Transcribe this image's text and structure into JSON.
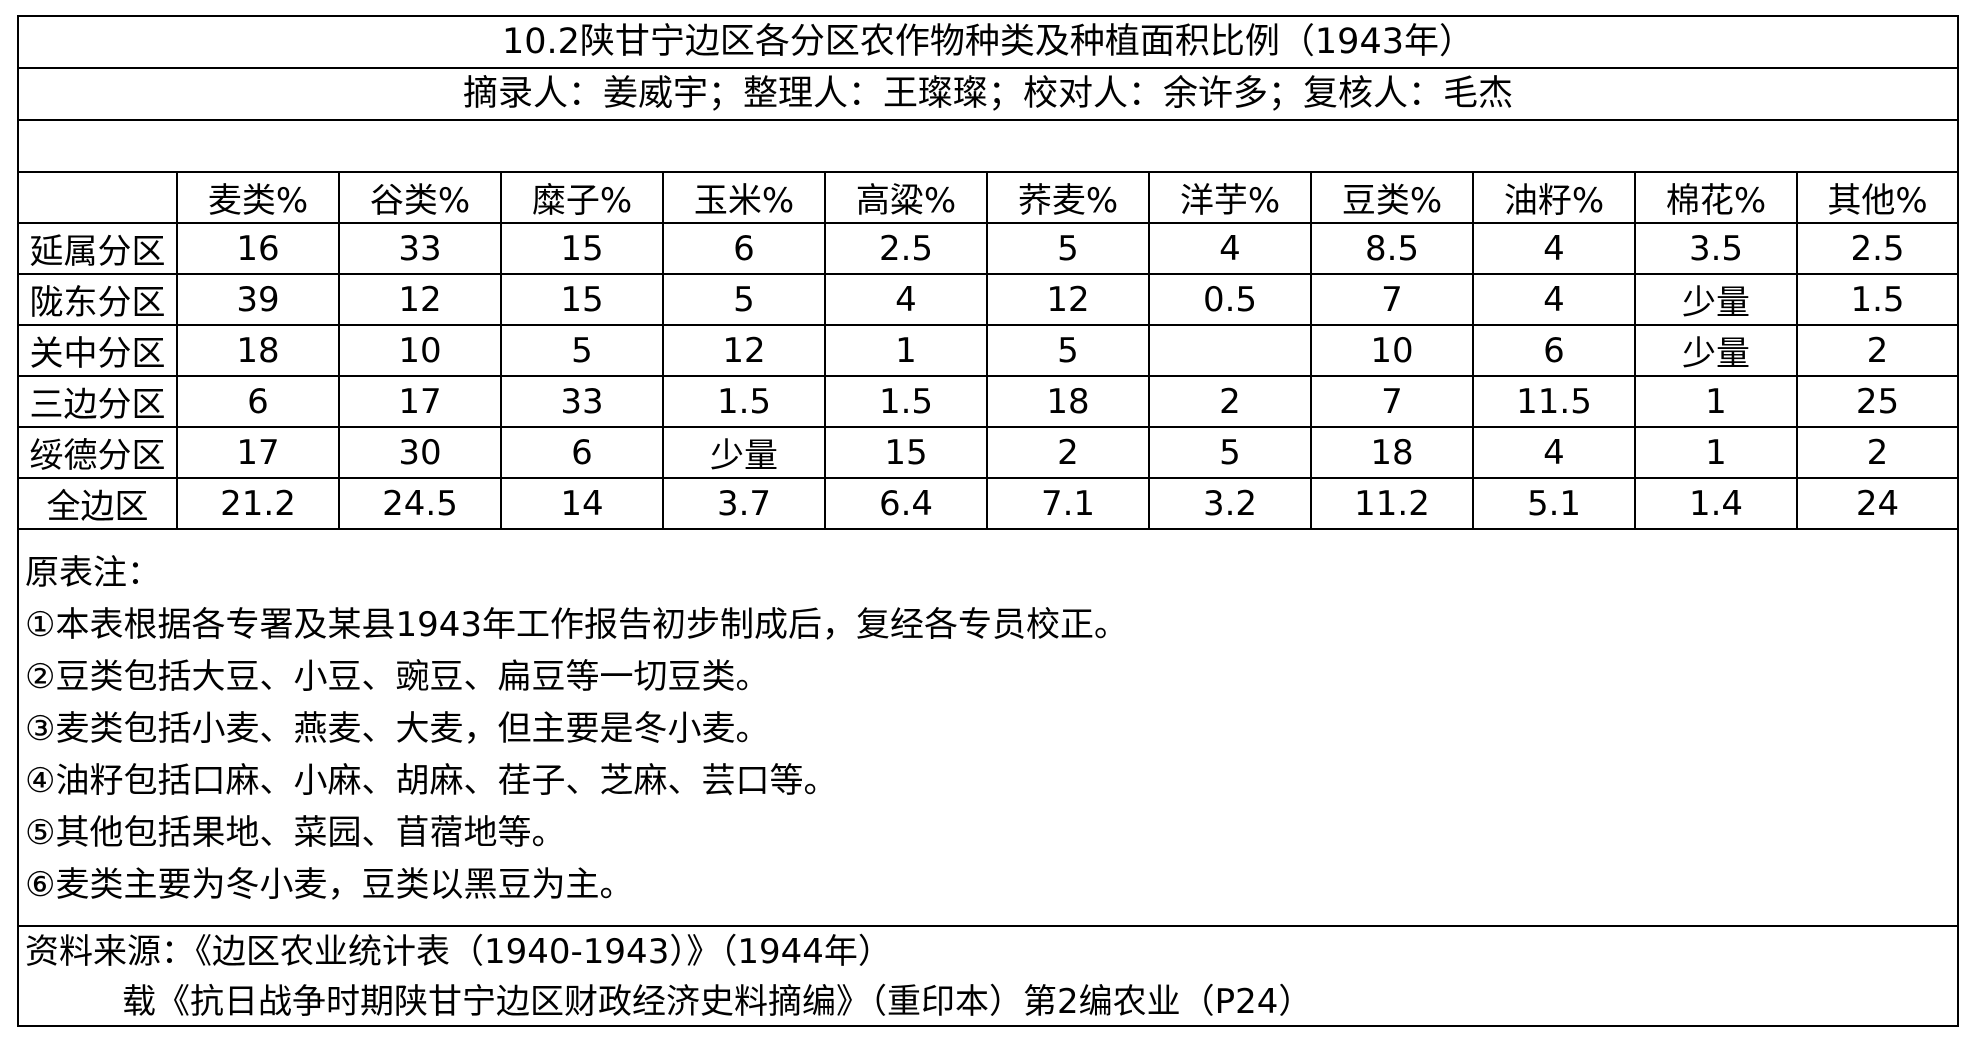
{
  "title": "10.2陕甘宁边区各分区农作物种类及种植面积比例（1943年）",
  "credits": "摘录人：姜威宇；整理人：王璨璨；校对人：余许多；复核人：毛杰",
  "table": {
    "headers": [
      "",
      "麦类%",
      "谷类%",
      "糜子%",
      "玉米%",
      "高粱%",
      "荞麦%",
      "洋芋%",
      "豆类%",
      "油籽%",
      "棉花%",
      "其他%"
    ],
    "rows": [
      [
        "延属分区",
        "16",
        "33",
        "15",
        "6",
        "2.5",
        "5",
        "4",
        "8.5",
        "4",
        "3.5",
        "2.5"
      ],
      [
        "陇东分区",
        "39",
        "12",
        "15",
        "5",
        "4",
        "12",
        "0.5",
        "7",
        "4",
        "少量",
        "1.5"
      ],
      [
        "关中分区",
        "18",
        "10",
        "5",
        "12",
        "1",
        "5",
        "",
        "10",
        "6",
        "少量",
        "2"
      ],
      [
        "三边分区",
        "6",
        "17",
        "33",
        "1.5",
        "1.5",
        "18",
        "2",
        "7",
        "11.5",
        "1",
        "25"
      ],
      [
        "绥德分区",
        "17",
        "30",
        "6",
        "少量",
        "15",
        "2",
        "5",
        "18",
        "4",
        "1",
        "2"
      ],
      [
        "全边区",
        "21.2",
        "24.5",
        "14",
        "3.7",
        "6.4",
        "7.1",
        "3.2",
        "11.2",
        "5.1",
        "1.4",
        "24"
      ]
    ]
  },
  "notes": {
    "heading": "原表注：",
    "items": [
      "①本表根据各专署及某县1943年工作报告初步制成后，复经各专员校正。",
      "②豆类包括大豆、小豆、豌豆、扁豆等一切豆类。",
      "③麦类包括小麦、燕麦、大麦，但主要是冬小麦。",
      "④油籽包括口麻、小麻、胡麻、荏子、芝麻、芸口等。",
      "⑤其他包括果地、菜园、苜蓿地等。",
      "⑥麦类主要为冬小麦，豆类以黑豆为主。"
    ]
  },
  "source": {
    "line1": "资料来源：《边区农业统计表（1940-1943）》（1944年）",
    "line2": "载《抗日战争时期陕甘宁边区财政经济史料摘编》（重印本）第2编农业（P24）"
  }
}
